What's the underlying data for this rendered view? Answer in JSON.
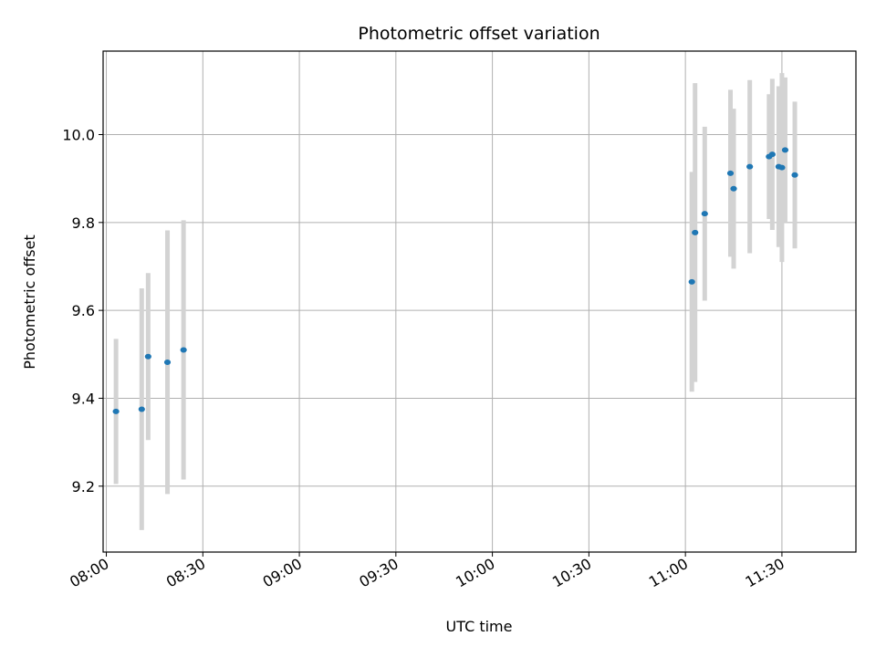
{
  "chart_data": {
    "type": "scatter",
    "title": "Photometric offset variation",
    "xlabel": "UTC time",
    "ylabel": "Photometric offset",
    "x_ticks": [
      "08:00",
      "08:30",
      "09:00",
      "09:30",
      "10:00",
      "10:30",
      "11:00",
      "11:30"
    ],
    "y_ticks": [
      "9.2",
      "9.4",
      "9.6",
      "9.8",
      "10.0"
    ],
    "xlim": [
      "07:59",
      "11:53"
    ],
    "ylim": [
      9.05,
      10.19
    ],
    "grid": true,
    "marker_color": "#1f77b4",
    "errorbar_color": "#d3d3d3",
    "points": [
      {
        "time": "08:03",
        "y": 9.37,
        "err": 0.165
      },
      {
        "time": "08:11",
        "y": 9.375,
        "err": 0.275
      },
      {
        "time": "08:13",
        "y": 9.495,
        "err": 0.19
      },
      {
        "time": "08:19",
        "y": 9.482,
        "err": 0.3
      },
      {
        "time": "08:24",
        "y": 9.51,
        "err": 0.295
      },
      {
        "time": "11:02",
        "y": 9.665,
        "err": 0.25
      },
      {
        "time": "11:03",
        "y": 9.777,
        "err": 0.34
      },
      {
        "time": "11:06",
        "y": 9.82,
        "err": 0.198
      },
      {
        "time": "11:14",
        "y": 9.912,
        "err": 0.19
      },
      {
        "time": "11:15",
        "y": 9.877,
        "err": 0.182
      },
      {
        "time": "11:20",
        "y": 9.927,
        "err": 0.197
      },
      {
        "time": "11:26",
        "y": 9.95,
        "err": 0.142
      },
      {
        "time": "11:27",
        "y": 9.955,
        "err": 0.172
      },
      {
        "time": "11:29",
        "y": 9.927,
        "err": 0.183
      },
      {
        "time": "11:30",
        "y": 9.925,
        "err": 0.215
      },
      {
        "time": "11:31",
        "y": 9.965,
        "err": 0.165
      },
      {
        "time": "11:34",
        "y": 9.908,
        "err": 0.167
      }
    ]
  }
}
